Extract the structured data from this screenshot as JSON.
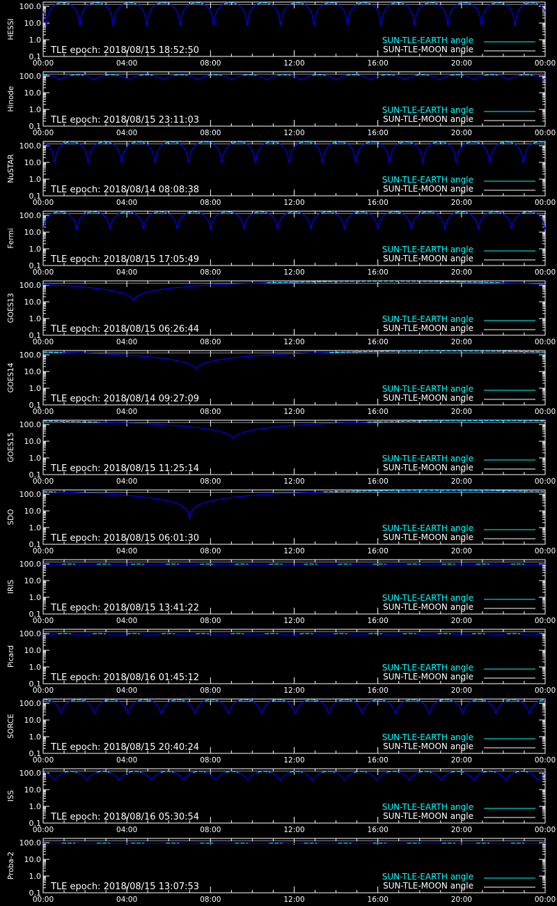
{
  "chart_data": {
    "type": "line",
    "yscale": "log",
    "ylim": [
      0.1,
      180
    ],
    "ytick_labels": [
      "100.0",
      "10.0",
      "1.0",
      "0.1"
    ],
    "ytick_values": [
      100,
      10,
      1,
      0.1
    ],
    "xlim": [
      "00:00",
      "24:00"
    ],
    "xtick_labels": [
      "00:00",
      "04:00",
      "08:00",
      "12:00",
      "16:00",
      "20:00",
      "00:00"
    ],
    "xtick_hours": [
      0,
      4,
      8,
      12,
      16,
      20,
      24
    ],
    "legend": {
      "placement": "bottom-right",
      "entries": [
        {
          "label": "SUN-TLE-EARTH angle",
          "color": "#00ffff"
        },
        {
          "label": "SUN-TLE-MOON angle",
          "color": "#ffffff"
        }
      ]
    },
    "colors": {
      "background": "#000000",
      "axes": "#ffffff",
      "sun_earth": "#00ffff",
      "sun_moon": "#ffffff",
      "occultation": "#0000ff"
    },
    "moon_angle_deg": 130,
    "panels": [
      {
        "name": "HESSI",
        "epoch_label": "TLE epoch: 2018/08/15 18:52:50",
        "series": {
          "kind": "periodic",
          "period_hours": 1.6,
          "phase_hours": 0.15,
          "min_deg": 2.5,
          "max_deg": 165
        }
      },
      {
        "name": "Hinode",
        "epoch_label": "TLE epoch: 2018/08/15 23:11:03",
        "series": {
          "kind": "periodic",
          "period_hours": 1.65,
          "phase_hours": 0.8,
          "min_deg": 60,
          "max_deg": 120
        }
      },
      {
        "name": "NuSTAR",
        "epoch_label": "TLE epoch: 2018/08/14 08:08:38",
        "series": {
          "kind": "periodic",
          "period_hours": 1.6,
          "phase_hours": 0.55,
          "min_deg": 5,
          "max_deg": 170
        }
      },
      {
        "name": "Fermi",
        "epoch_label": "TLE epoch: 2018/08/15 17:05:49",
        "series": {
          "kind": "periodic",
          "period_hours": 1.6,
          "phase_hours": 0.0,
          "min_deg": 15,
          "max_deg": 165
        }
      },
      {
        "name": "GOES13",
        "epoch_label": "TLE epoch: 2018/08/15 06:26:44",
        "series": {
          "kind": "daily",
          "min_hour": 4.3,
          "min_deg": 12,
          "max_deg": 170
        }
      },
      {
        "name": "GOES14",
        "epoch_label": "TLE epoch: 2018/08/14 09:27:09",
        "series": {
          "kind": "daily",
          "min_hour": 7.3,
          "min_deg": 14,
          "max_deg": 170
        }
      },
      {
        "name": "GOES15",
        "epoch_label": "TLE epoch: 2018/08/15 11:25:14",
        "series": {
          "kind": "daily",
          "min_hour": 9.1,
          "min_deg": 14,
          "max_deg": 170
        }
      },
      {
        "name": "SDO",
        "epoch_label": "TLE epoch: 2018/08/15 06:01:30",
        "series": {
          "kind": "daily",
          "min_hour": 7.0,
          "min_deg": 3,
          "max_deg": 170
        }
      },
      {
        "name": "IRIS",
        "epoch_label": "TLE epoch: 2018/08/15 13:41:22",
        "series": {
          "kind": "periodic",
          "period_hours": 1.65,
          "phase_hours": 0.4,
          "min_deg": 85,
          "max_deg": 98
        }
      },
      {
        "name": "Picard",
        "epoch_label": "TLE epoch: 2018/08/16 01:45:12",
        "series": {
          "kind": "periodic",
          "period_hours": 1.65,
          "phase_hours": 0.2,
          "min_deg": 80,
          "max_deg": 100
        }
      },
      {
        "name": "SORCE",
        "epoch_label": "TLE epoch: 2018/08/15 20:40:24",
        "series": {
          "kind": "periodic",
          "period_hours": 1.6,
          "phase_hours": 0.85,
          "min_deg": 20,
          "max_deg": 165
        }
      },
      {
        "name": "ISS",
        "epoch_label": "TLE epoch: 2018/08/16 05:30:54",
        "series": {
          "kind": "periodic",
          "period_hours": 1.54,
          "phase_hours": 0.55,
          "min_deg": 35,
          "max_deg": 125
        }
      },
      {
        "name": "Proba-2",
        "epoch_label": "TLE epoch: 2018/08/15 13:07:53",
        "series": {
          "kind": "periodic",
          "period_hours": 1.65,
          "phase_hours": 0.4,
          "min_deg": 88,
          "max_deg": 94
        }
      }
    ]
  }
}
